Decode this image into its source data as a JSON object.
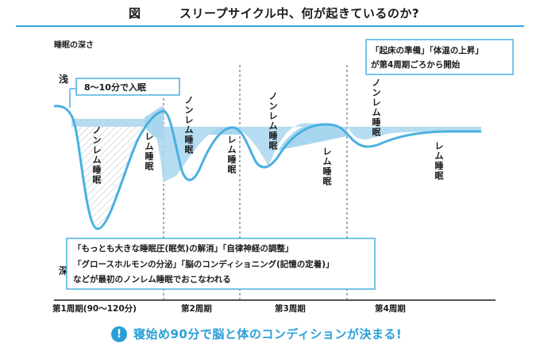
{
  "title": {
    "figure_label": "図",
    "text": "スリープサイクル中、何が起きているのか?"
  },
  "y_axis": {
    "label": "睡眠の深さ",
    "shallow": "浅",
    "deep": "深"
  },
  "callout_onset": "8〜10分で入眠",
  "callout_top_right": {
    "line1": "「起床の準備」「体温の上昇」",
    "line2": "が第4周期ごろから開始"
  },
  "stages": {
    "nrem1": "ノンレム睡眠",
    "rem1": "レム睡眠",
    "nrem2": "ノンレム睡眠",
    "rem2": "レム睡眠",
    "nrem3": "ノンレム睡眠",
    "rem3": "レム睡眠",
    "nrem4": "ノンレム睡眠",
    "rem4": "レム睡眠"
  },
  "info_box": {
    "line1": "「もっとも大きな睡眠圧(眠気)の解消」「自律神経の調整」",
    "line2": "「グロースホルモンの分泌」「脳のコンディショニング(記憶の定着)」",
    "line3": "などが最初のノンレム睡眠でおこなわれる"
  },
  "cycles": [
    "第1周期(90〜120分)",
    "第2周期",
    "第3周期",
    "第4周期"
  ],
  "footer": {
    "icon": "!",
    "text": "寝始め90分で脳と体のコンディションが決まる!"
  },
  "colors": {
    "accent": "#2a9fd6",
    "fill": "#a9d6ef",
    "curve": "#4ab0e0"
  }
}
